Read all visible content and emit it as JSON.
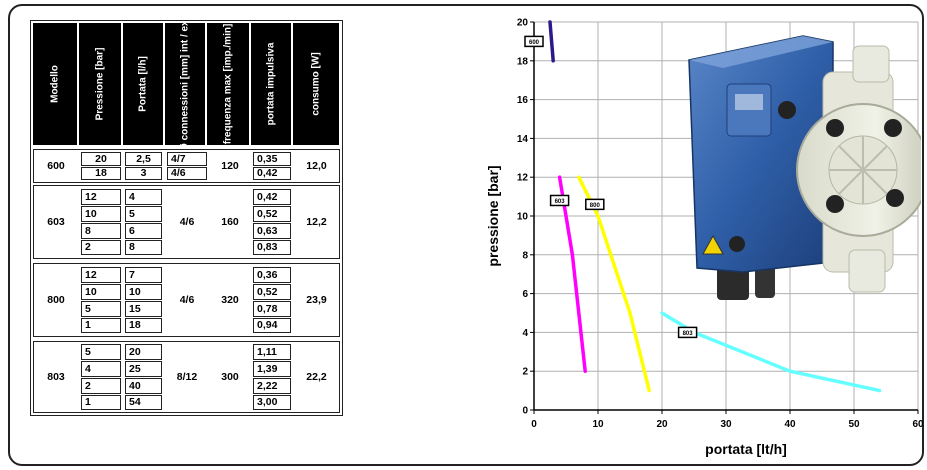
{
  "table": {
    "headers": [
      "Modello",
      "Pressione [bar]",
      "Portata [l/h]",
      "Ø connessioni [mm] int / ext",
      "frequenza max [imp./min]",
      "portata impulsiva",
      "consumo [W]"
    ],
    "models": [
      {
        "modello": "600",
        "rows": [
          [
            "20",
            "2,5"
          ],
          [
            "18",
            "3"
          ]
        ],
        "connections": [
          "4/7",
          "4/6"
        ],
        "frequency": "120",
        "impulsive": [
          "0,35",
          "0,42"
        ],
        "consumption": "12,0"
      },
      {
        "modello": "603",
        "rows": [
          [
            "12",
            "4"
          ],
          [
            "10",
            "5"
          ],
          [
            "8",
            "6"
          ],
          [
            "2",
            "8"
          ]
        ],
        "connections": [
          "4/6"
        ],
        "frequency": "160",
        "impulsive": [
          "0,42",
          "0,52",
          "0,63",
          "0,83"
        ],
        "consumption": "12,2"
      },
      {
        "modello": "800",
        "rows": [
          [
            "12",
            "7"
          ],
          [
            "10",
            "10"
          ],
          [
            "5",
            "15"
          ],
          [
            "1",
            "18"
          ]
        ],
        "connections": [
          "4/6"
        ],
        "frequency": "320",
        "impulsive": [
          "0,36",
          "0,52",
          "0,78",
          "0,94"
        ],
        "consumption": "23,9"
      },
      {
        "modello": "803",
        "rows": [
          [
            "5",
            "20"
          ],
          [
            "4",
            "25"
          ],
          [
            "2",
            "40"
          ],
          [
            "1",
            "54"
          ]
        ],
        "connections": [
          "8/12"
        ],
        "frequency": "300",
        "impulsive": [
          "1,11",
          "1,39",
          "2,22",
          "3,00"
        ],
        "consumption": "22,2"
      }
    ]
  },
  "chart_data": {
    "type": "line",
    "xlabel": "portata [lt/h]",
    "ylabel": "pressione [bar]",
    "xlim": [
      0,
      60
    ],
    "ylim": [
      0,
      20
    ],
    "xticks": [
      0,
      10,
      20,
      30,
      40,
      50,
      60
    ],
    "yticks": [
      0,
      2,
      4,
      6,
      8,
      10,
      12,
      14,
      16,
      18,
      20
    ],
    "grid": true,
    "series": [
      {
        "name": "600",
        "color": "#2a1a8c",
        "x": [
          2.5,
          3
        ],
        "y": [
          20,
          18
        ],
        "label_at": [
          0,
          19
        ]
      },
      {
        "name": "603",
        "color": "#ff00ff",
        "x": [
          4,
          5,
          6,
          8
        ],
        "y": [
          12,
          10,
          8,
          2
        ],
        "label_at": [
          4,
          10.8
        ]
      },
      {
        "name": "800",
        "color": "#ffff00",
        "x": [
          7,
          10,
          15,
          18
        ],
        "y": [
          12,
          10,
          5,
          1
        ],
        "label_at": [
          9.5,
          10.6
        ]
      },
      {
        "name": "803",
        "color": "#66ffff",
        "x": [
          20,
          25,
          40,
          54
        ],
        "y": [
          5,
          4,
          2,
          1
        ],
        "label_at": [
          24,
          4
        ]
      }
    ]
  },
  "image": {
    "description_icon": "metering-pump-photo"
  }
}
